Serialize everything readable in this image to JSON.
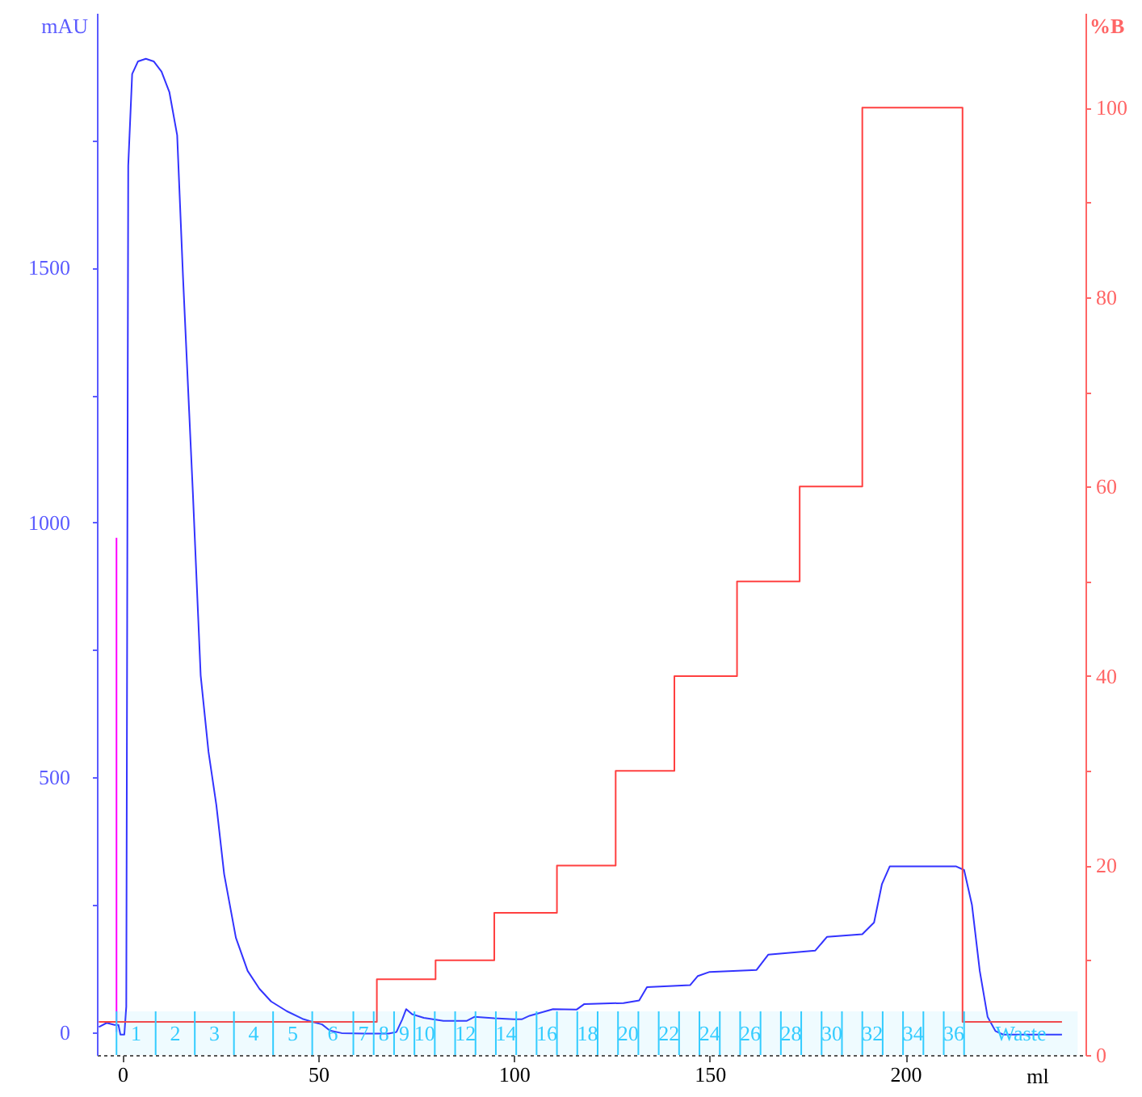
{
  "chart_data": {
    "type": "line",
    "xlabel": "ml",
    "ylabel": "mAU",
    "y2label": "%B",
    "xlim": [
      -6.5,
      246
    ],
    "ylim": [
      -45,
      2000
    ],
    "y2lim": [
      0,
      110
    ],
    "xticks": [
      0,
      50,
      100,
      150,
      200
    ],
    "yticks": [
      0,
      {
        "value": 250,
        "label": null
      },
      500,
      {
        "value": 750,
        "label": null
      },
      1000,
      {
        "value": 1250,
        "label": null
      },
      1500,
      {
        "value": 1750,
        "label": null
      }
    ],
    "y2ticks": [
      0,
      {
        "value": 10,
        "label": null
      },
      20,
      {
        "value": 30,
        "label": null
      },
      40,
      {
        "value": 50,
        "label": null
      },
      60,
      {
        "value": 70,
        "label": null
      },
      80,
      {
        "value": 90,
        "label": null
      },
      100
    ],
    "grid": false,
    "series": [
      {
        "color": "#3333ff",
        "x": [
          -6,
          -4,
          -2,
          -1,
          -0.5,
          0.5,
          1,
          1.5,
          2.5,
          4,
          6,
          8,
          10,
          12,
          14,
          15.5,
          18,
          20,
          22,
          24,
          26,
          29,
          32,
          35,
          38,
          42,
          46,
          49,
          51,
          53,
          56,
          62,
          68,
          70,
          71.5,
          72.5,
          74,
          77,
          82,
          88,
          90,
          95,
          100,
          102,
          104,
          110,
          116,
          118,
          128,
          132,
          134,
          145,
          147,
          150,
          162,
          165,
          177,
          180,
          189,
          192,
          194,
          196,
          213,
          215,
          217,
          219,
          221,
          223,
          225,
          240
        ],
        "values": [
          10,
          18,
          14,
          14,
          -5,
          -5,
          50,
          1700,
          1880,
          1905,
          1910,
          1905,
          1885,
          1845,
          1760,
          1480,
          1060,
          700,
          550,
          446,
          310,
          185,
          120,
          85,
          60,
          41,
          26,
          19,
          15,
          3,
          -2,
          -3,
          -3,
          0,
          25,
          45,
          35,
          28,
          22,
          22,
          30,
          27,
          25,
          25,
          32,
          45,
          44,
          55,
          57,
          62,
          88,
          92,
          110,
          118,
          122,
          152,
          160,
          187,
          192,
          215,
          290,
          325,
          325,
          318,
          250,
          120,
          30,
          2,
          -5,
          -5
        ]
      },
      {
        "color": "#ff00ff",
        "x": [
          -1.5,
          -1.5
        ],
        "values": [
          0,
          970
        ]
      },
      {
        "type": "step",
        "axis": "y2",
        "color": "#ff4040",
        "x": [
          -6,
          65,
          80,
          95,
          111,
          126,
          141,
          157,
          173,
          189,
          214.6,
          240
        ],
        "values": [
          3.5,
          8,
          10,
          15,
          20,
          30,
          40,
          50,
          60,
          100,
          3.5,
          3.5
        ]
      }
    ],
    "bands": [
      {
        "axis": "x",
        "from": -1.5,
        "to": 8.5,
        "label": "1",
        "color": "#33ccff"
      },
      {
        "axis": "x",
        "from": 8.5,
        "to": 18.5,
        "label": "2",
        "color": "#33ccff"
      },
      {
        "axis": "x",
        "from": 18.5,
        "to": 28.5,
        "label": "3",
        "color": "#33ccff"
      },
      {
        "axis": "x",
        "from": 28.5,
        "to": 38.5,
        "label": "4",
        "color": "#33ccff"
      },
      {
        "axis": "x",
        "from": 38.5,
        "to": 48.5,
        "label": "5",
        "color": "#33ccff"
      },
      {
        "axis": "x",
        "from": 48.5,
        "to": 59,
        "label": "6",
        "color": "#33ccff"
      },
      {
        "axis": "x",
        "from": 59,
        "to": 64.2,
        "label": "7",
        "color": "#33ccff"
      },
      {
        "axis": "x",
        "from": 64.2,
        "to": 69.4,
        "label": "8",
        "color": "#33ccff"
      },
      {
        "axis": "x",
        "from": 69.4,
        "to": 74.6,
        "label": "9",
        "color": "#33ccff"
      },
      {
        "axis": "x",
        "from": 74.6,
        "to": 79.8,
        "label": "10",
        "color": "#33ccff"
      },
      {
        "axis": "x",
        "from": 79.8,
        "to": 85,
        "color": "#33ccff"
      },
      {
        "axis": "x",
        "from": 85,
        "to": 90.2,
        "label": "12",
        "color": "#33ccff"
      },
      {
        "axis": "x",
        "from": 90.2,
        "to": 95.4,
        "color": "#33ccff"
      },
      {
        "axis": "x",
        "from": 95.4,
        "to": 100.6,
        "label": "14",
        "color": "#33ccff"
      },
      {
        "axis": "x",
        "from": 100.6,
        "to": 105.8,
        "color": "#33ccff"
      },
      {
        "axis": "x",
        "from": 105.8,
        "to": 111,
        "label": "16",
        "color": "#33ccff"
      },
      {
        "axis": "x",
        "from": 111,
        "to": 116.2,
        "color": "#33ccff"
      },
      {
        "axis": "x",
        "from": 116.2,
        "to": 121.4,
        "label": "18",
        "color": "#33ccff"
      },
      {
        "axis": "x",
        "from": 121.4,
        "to": 126.6,
        "color": "#33ccff"
      },
      {
        "axis": "x",
        "from": 126.6,
        "to": 131.8,
        "label": "20",
        "color": "#33ccff"
      },
      {
        "axis": "x",
        "from": 131.8,
        "to": 137,
        "color": "#33ccff"
      },
      {
        "axis": "x",
        "from": 137,
        "to": 142.2,
        "label": "22",
        "color": "#33ccff"
      },
      {
        "axis": "x",
        "from": 142.2,
        "to": 147.4,
        "color": "#33ccff"
      },
      {
        "axis": "x",
        "from": 147.4,
        "to": 152.6,
        "label": "24",
        "color": "#33ccff"
      },
      {
        "axis": "x",
        "from": 152.6,
        "to": 157.8,
        "color": "#33ccff"
      },
      {
        "axis": "x",
        "from": 157.8,
        "to": 163,
        "label": "26",
        "color": "#33ccff"
      },
      {
        "axis": "x",
        "from": 163,
        "to": 168.2,
        "color": "#33ccff"
      },
      {
        "axis": "x",
        "from": 168.2,
        "to": 173.4,
        "label": "28",
        "color": "#33ccff"
      },
      {
        "axis": "x",
        "from": 173.4,
        "to": 178.6,
        "color": "#33ccff"
      },
      {
        "axis": "x",
        "from": 178.6,
        "to": 183.8,
        "label": "30",
        "color": "#33ccff"
      },
      {
        "axis": "x",
        "from": 183.8,
        "to": 189,
        "color": "#33ccff"
      },
      {
        "axis": "x",
        "from": 189,
        "to": 194.2,
        "label": "32",
        "color": "#33ccff"
      },
      {
        "axis": "x",
        "from": 194.2,
        "to": 199.4,
        "color": "#33ccff"
      },
      {
        "axis": "x",
        "from": 199.4,
        "to": 204.6,
        "label": "34",
        "color": "#33ccff"
      },
      {
        "axis": "x",
        "from": 204.6,
        "to": 209.8,
        "color": "#33ccff"
      },
      {
        "axis": "x",
        "from": 209.8,
        "to": 215,
        "label": "36",
        "color": "#33ccff"
      },
      {
        "axis": "x",
        "from": 215,
        "to": 244,
        "label": "Waste",
        "color": "#33ccff"
      }
    ]
  }
}
